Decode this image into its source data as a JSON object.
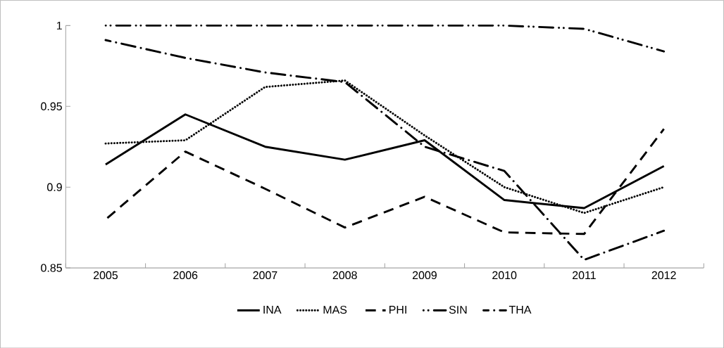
{
  "chart_data": {
    "type": "line",
    "categories": [
      "2005",
      "2006",
      "2007",
      "2008",
      "2009",
      "2010",
      "2011",
      "2012"
    ],
    "series": [
      {
        "name": "INA",
        "color": "#000000",
        "line_style": "solid",
        "values": [
          0.914,
          0.945,
          0.925,
          0.917,
          0.929,
          0.892,
          0.887,
          0.913
        ]
      },
      {
        "name": "MAS",
        "color": "#000000",
        "line_style": "dotted",
        "values": [
          0.927,
          0.929,
          0.962,
          0.966,
          0.932,
          0.9,
          0.884,
          0.9
        ]
      },
      {
        "name": "PHI",
        "color": "#000000",
        "line_style": "dashed",
        "values": [
          0.88,
          0.922,
          0.899,
          0.875,
          0.894,
          0.872,
          0.871,
          0.936
        ]
      },
      {
        "name": "SIN",
        "color": "#000000",
        "line_style": "dashdotdot",
        "values": [
          1,
          1,
          1,
          1,
          1,
          1,
          0.998,
          0.984
        ]
      },
      {
        "name": "THA",
        "color": "#000000",
        "line_style": "dashdot",
        "values": [
          0.991,
          0.98,
          0.971,
          0.965,
          0.925,
          0.91,
          0.855,
          0.873
        ]
      }
    ],
    "ylim": [
      0.85,
      1
    ],
    "yticks": [
      0.85,
      0.9,
      0.95,
      1
    ],
    "legend": "bottom",
    "grid": false,
    "marker": "none"
  }
}
